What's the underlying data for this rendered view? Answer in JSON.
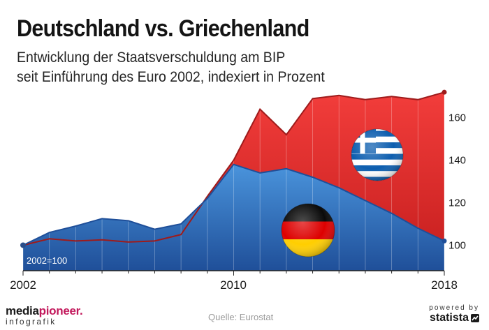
{
  "header": {
    "title": "Deutschland vs. Griechenland",
    "subtitle_line1": "Entwicklung der Staatsverschuldung am BIP",
    "subtitle_line2": "seit Einführung des Euro 2002, indexiert in Prozent"
  },
  "chart_data": {
    "type": "area",
    "title": "Deutschland vs. Griechenland",
    "x": [
      2002,
      2003,
      2004,
      2005,
      2006,
      2007,
      2008,
      2009,
      2010,
      2011,
      2012,
      2013,
      2014,
      2015,
      2016,
      2017,
      2018
    ],
    "x_tick_labels": [
      "2002",
      "2010",
      "2018"
    ],
    "y_tick_values": [
      100,
      120,
      140,
      160
    ],
    "y_tick_labels": [
      "100",
      "120",
      "140",
      "160"
    ],
    "ylim": [
      88,
      176
    ],
    "series": [
      {
        "name": "Griechenland",
        "color": "#e53935",
        "values": [
          100,
          103,
          102,
          102.5,
          101.5,
          102,
          105,
          123,
          140,
          164,
          152,
          169,
          170.5,
          168.5,
          170,
          168.5,
          172
        ]
      },
      {
        "name": "Deutschland",
        "color": "#2f6fc2",
        "values": [
          100,
          106,
          109,
          112.5,
          111.5,
          107.5,
          110,
          122,
          138,
          134,
          136,
          132,
          127,
          121,
          115,
          108,
          102
        ]
      }
    ],
    "annotations": [
      "2002=100"
    ],
    "legend": "flag icons inside the plot area"
  },
  "footer": {
    "brand_part1": "media",
    "brand_part2": "pioneer.",
    "brand_sub": "infografik",
    "source": "Quelle: Eurostat",
    "powered": "powered by",
    "statista": "statista"
  }
}
